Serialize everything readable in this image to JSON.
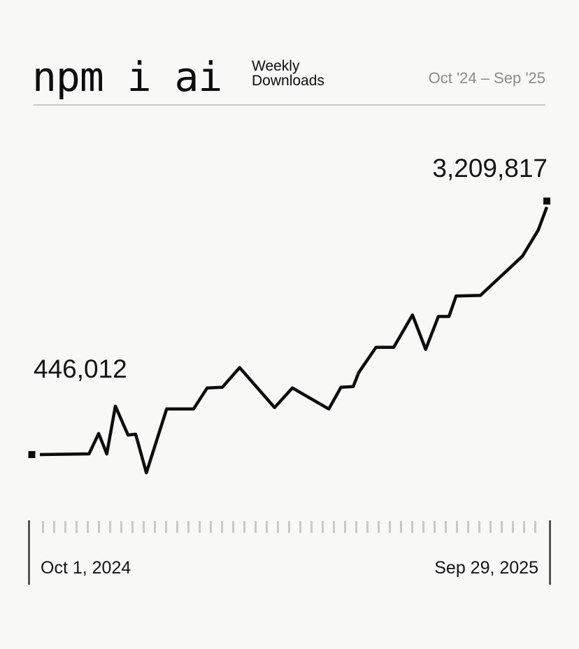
{
  "header": {
    "title": "npm i ai",
    "subtitle_line1": "Weekly",
    "subtitle_line2": "Downloads",
    "date_range": "Oct '24 – Sep '25"
  },
  "chart": {
    "start_label": "446,012",
    "end_label": "3,209,817"
  },
  "axis": {
    "start_date": "Oct 1, 2024",
    "end_date": "Sep 29, 2025",
    "tick_count": 45
  },
  "colors": {
    "background": "#f8f8f7",
    "line": "#0d0d0d",
    "text": "#141414",
    "muted_text": "#8b8b8b",
    "divider": "#c9c9c9",
    "tick": "#c9c9c9",
    "axis_bar": "#555555"
  },
  "chart_data": {
    "type": "line",
    "title": "npm i ai — Weekly Downloads",
    "xlabel": "",
    "ylabel": "Weekly downloads",
    "x_range": [
      "Oct 1, 2024",
      "Sep 29, 2025"
    ],
    "start_value": 446012,
    "end_value": 3209817,
    "legend": "none",
    "grid": false,
    "points": [
      {
        "x": 0.0,
        "v": 446012
      },
      {
        "x": 0.097,
        "v": 454000
      },
      {
        "x": 0.116,
        "v": 681000
      },
      {
        "x": 0.132,
        "v": 454000
      },
      {
        "x": 0.149,
        "v": 986000
      },
      {
        "x": 0.174,
        "v": 665000
      },
      {
        "x": 0.189,
        "v": 673000
      },
      {
        "x": 0.21,
        "v": 242000
      },
      {
        "x": 0.25,
        "v": 955000
      },
      {
        "x": 0.303,
        "v": 955000
      },
      {
        "x": 0.33,
        "v": 1190000
      },
      {
        "x": 0.36,
        "v": 1198000
      },
      {
        "x": 0.394,
        "v": 1417000
      },
      {
        "x": 0.463,
        "v": 971000
      },
      {
        "x": 0.498,
        "v": 1190000
      },
      {
        "x": 0.57,
        "v": 955000
      },
      {
        "x": 0.594,
        "v": 1198000
      },
      {
        "x": 0.618,
        "v": 1205000
      },
      {
        "x": 0.629,
        "v": 1362000
      },
      {
        "x": 0.663,
        "v": 1644000
      },
      {
        "x": 0.698,
        "v": 1644000
      },
      {
        "x": 0.735,
        "v": 2004000
      },
      {
        "x": 0.761,
        "v": 1620000
      },
      {
        "x": 0.786,
        "v": 1988000
      },
      {
        "x": 0.807,
        "v": 1988000
      },
      {
        "x": 0.821,
        "v": 2216000
      },
      {
        "x": 0.869,
        "v": 2223000
      },
      {
        "x": 0.952,
        "v": 2662000
      },
      {
        "x": 0.983,
        "v": 2952000
      },
      {
        "x": 1.0,
        "v": 3209817
      }
    ]
  }
}
